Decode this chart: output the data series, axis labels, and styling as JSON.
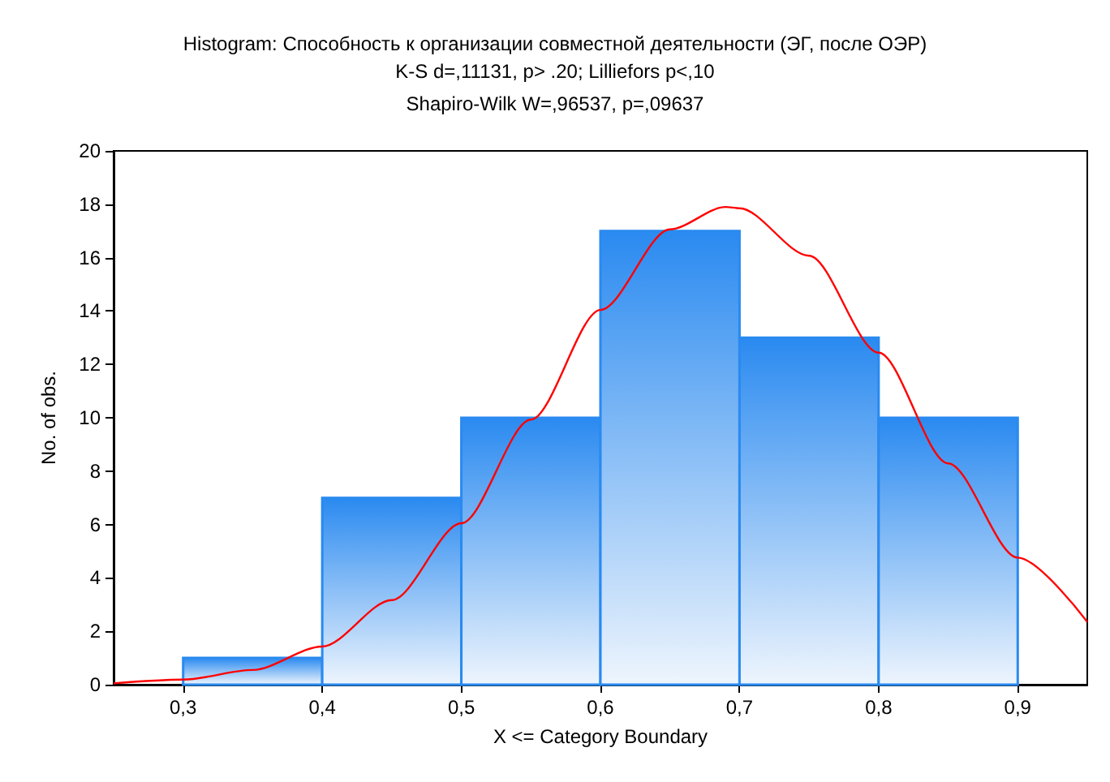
{
  "chart_data": {
    "type": "histogram",
    "title": "Histogram: Способность к организации совместной деятельности (ЭГ, после ОЭР)",
    "annotations": [
      "K-S d=,11131, p> .20; Lilliefors p<,10",
      "Shapiro-Wilk W=,96537, p=,09637"
    ],
    "xlabel": "X <= Category Boundary",
    "ylabel": "No. of obs.",
    "bins": [
      0.3,
      0.4,
      0.5,
      0.6,
      0.7,
      0.8,
      0.9
    ],
    "values": [
      1,
      7,
      10,
      17,
      13,
      10
    ],
    "color": "#2a8af0",
    "xlim": [
      0.25,
      0.95
    ],
    "xticks": [
      {
        "value": 0.3,
        "label": "0,3"
      },
      {
        "value": 0.4,
        "label": "0,4"
      },
      {
        "value": 0.5,
        "label": "0,5"
      },
      {
        "value": 0.6,
        "label": "0,6"
      },
      {
        "value": 0.7,
        "label": "0,7"
      },
      {
        "value": 0.8,
        "label": "0,8"
      },
      {
        "value": 0.9,
        "label": "0,9"
      }
    ],
    "ylim": [
      0,
      20
    ],
    "yticks": [
      0,
      2,
      4,
      6,
      8,
      10,
      12,
      14,
      16,
      18,
      20
    ],
    "series": [
      {
        "type": "line",
        "color": "#ff0000",
        "x": [
          0.25,
          0.3,
          0.35,
          0.4,
          0.45,
          0.5,
          0.55,
          0.6,
          0.65,
          0.69,
          0.7,
          0.75,
          0.8,
          0.85,
          0.9,
          0.95
        ],
        "values": [
          0.05,
          0.19,
          0.55,
          1.43,
          3.17,
          6.05,
          9.93,
          14.04,
          17.06,
          17.9,
          17.85,
          16.07,
          12.44,
          8.29,
          4.76,
          2.35
        ]
      }
    ]
  }
}
